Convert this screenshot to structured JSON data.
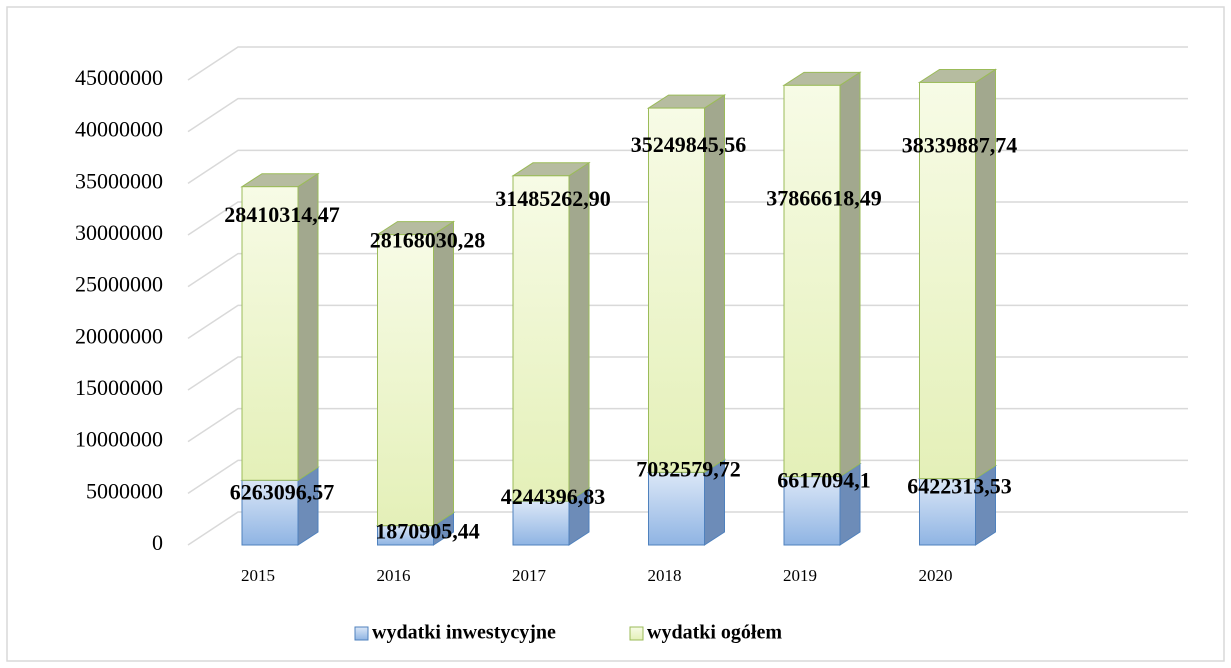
{
  "chart_data": {
    "type": "bar3d_stacked",
    "categories": [
      "2015",
      "2016",
      "2017",
      "2018",
      "2019",
      "2020"
    ],
    "series": [
      {
        "name": "wydatki inwestycyjne",
        "color": "#8fb4e3",
        "values": [
          6263096.57,
          1870905.44,
          4244396.83,
          7032579.72,
          6617094.1,
          6422313.53
        ],
        "value_labels": [
          "6263096,57",
          "1870905,44",
          "4244396,83",
          "7032579,72",
          "6617094,1",
          "6422313,53"
        ]
      },
      {
        "name": "wydatki ogółem",
        "color": "#ebf5c8",
        "values": [
          28410314.47,
          28168030.28,
          31485262.9,
          35249845.56,
          37866618.49,
          38339887.74
        ],
        "value_labels": [
          "28410314,47",
          "28168030,28",
          "31485262,90",
          "35249845,56",
          "37866618,49",
          "38339887,74"
        ]
      }
    ],
    "ylim": [
      0,
      45000000
    ],
    "yticks": [
      0,
      5000000,
      10000000,
      15000000,
      20000000,
      25000000,
      30000000,
      35000000,
      40000000,
      45000000
    ],
    "grid": true,
    "legend": "bottom"
  }
}
